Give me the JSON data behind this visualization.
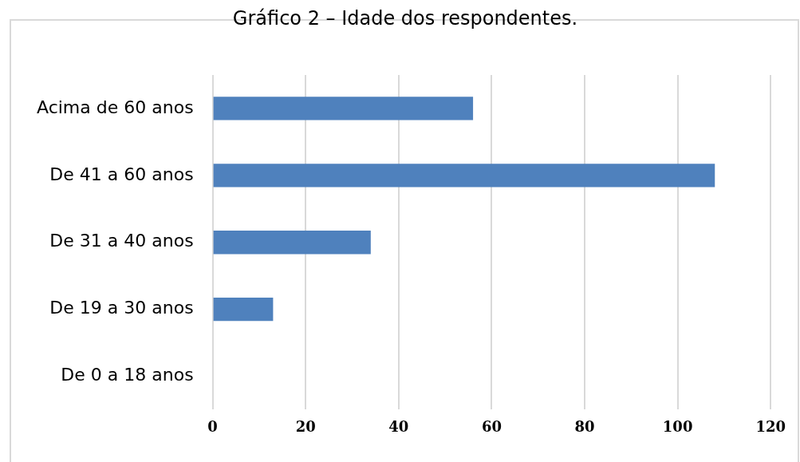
{
  "chart_data": {
    "type": "bar",
    "orientation": "horizontal",
    "title": "Gráfico 2 – Idade dos respondentes.",
    "categories": [
      "Acima de 60 anos",
      "De 41 a 60 anos",
      "De 31 a 40 anos",
      "De 19 a 30 anos",
      "De 0 a 18 anos"
    ],
    "values": [
      56,
      108,
      34,
      13,
      0
    ],
    "color": "#4f81bd",
    "xlim": [
      0,
      120
    ],
    "xticks": [
      0,
      20,
      40,
      60,
      80,
      100,
      120
    ],
    "grid": "x",
    "legend": false
  }
}
